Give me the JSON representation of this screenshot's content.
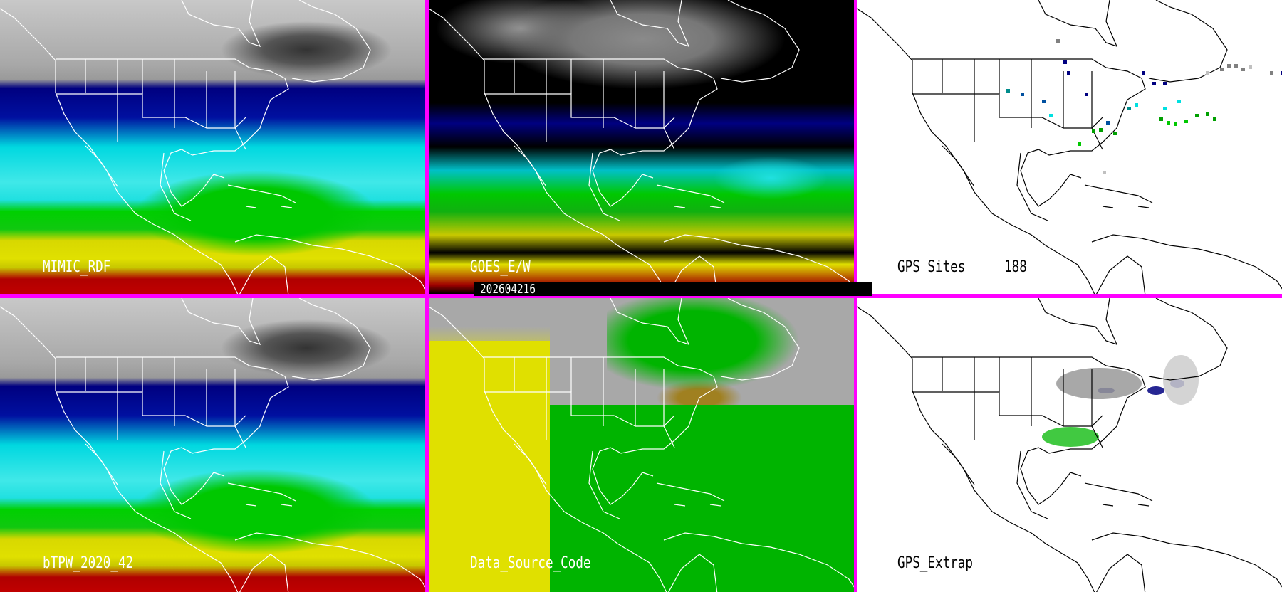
{
  "panels": [
    {
      "label": "MIMIC_RDF"
    },
    {
      "label": "GOES_E/W"
    },
    {
      "label": "GPS Sites",
      "count": "188"
    },
    {
      "label": "bTPW_2020_42"
    },
    {
      "label": "Data_Source_Code"
    },
    {
      "label": "GPS_Extrap"
    }
  ],
  "timestamp": "202604216",
  "colors": {
    "divider": "#ff00ff",
    "site_colors": [
      "#000080",
      "#0050a0",
      "#008c8c",
      "#00e0e0",
      "#00a000",
      "#00c800",
      "#808080",
      "#c0c0c0"
    ]
  }
}
